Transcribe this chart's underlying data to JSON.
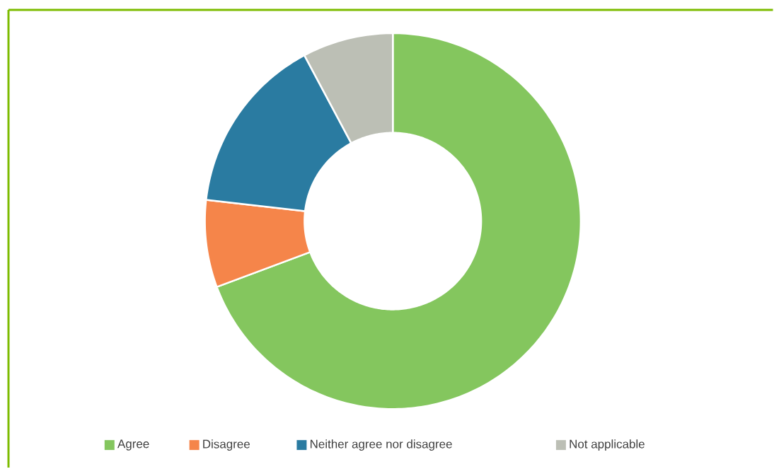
{
  "chart_data": {
    "type": "donut",
    "categories": [
      "Agree",
      "Disagree",
      "Neither agree nor disagree",
      "Not applicable"
    ],
    "values": [
      69.3,
      7.5,
      15.4,
      7.8
    ],
    "colors": [
      "#84c65e",
      "#f5854a",
      "#2a7ba1",
      "#bcbfb5"
    ],
    "legend": "bottom"
  }
}
